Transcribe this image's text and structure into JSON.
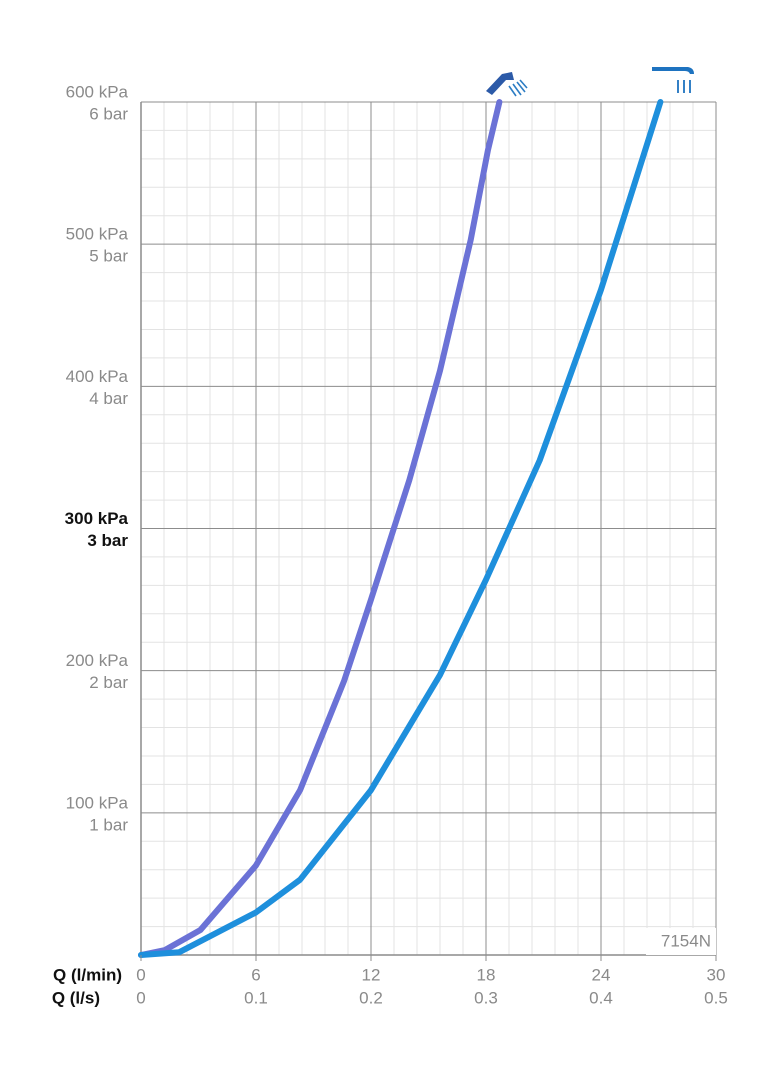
{
  "chart_data": {
    "type": "line",
    "xlabel": "Q (l/min)",
    "x2label": "Q (l/s)",
    "xlim": [
      0,
      30
    ],
    "xticks": [
      0,
      6,
      12,
      18,
      24,
      30
    ],
    "x2lim": [
      0,
      0.5
    ],
    "x2ticks": [
      0,
      0.1,
      0.2,
      0.3,
      0.4,
      0.5
    ],
    "ylim": [
      0,
      600
    ],
    "yticks": [
      {
        "value": 100,
        "label": "100 kPa"
      },
      {
        "value": 200,
        "label": "200 kPa"
      },
      {
        "value": 300,
        "label": "300 kPa"
      },
      {
        "value": 400,
        "label": "400 kPa"
      },
      {
        "value": 500,
        "label": "500 kPa"
      },
      {
        "value": 600,
        "label": "600 kPa"
      }
    ],
    "y2lim": [
      0,
      6
    ],
    "y2ticks": [
      {
        "value": 1,
        "label": "1 bar"
      },
      {
        "value": 2,
        "label": "2 bar"
      },
      {
        "value": 3,
        "label": "3 bar"
      },
      {
        "value": 4,
        "label": "4 bar"
      },
      {
        "value": 5,
        "label": "5 bar"
      },
      {
        "value": 6,
        "label": "6 bar"
      }
    ],
    "grid": true,
    "annotation": "7154N",
    "series": [
      {
        "color": "#6b72d6",
        "x": [
          0,
          1.25,
          3.1,
          6,
          8.3,
          10.6,
          12,
          14,
          15.6,
          17.2,
          18.1,
          18.7
        ],
        "values": [
          0,
          3.5,
          17.6,
          63,
          116,
          193,
          250,
          334,
          411,
          503,
          566,
          600
        ]
      },
      {
        "color": "#1e8fdc",
        "x": [
          0,
          2,
          6,
          8.3,
          12,
          15.6,
          18,
          20.8,
          24,
          27.1
        ],
        "values": [
          0,
          2,
          30,
          53,
          116,
          197,
          264,
          348,
          468,
          600
        ]
      }
    ]
  }
}
